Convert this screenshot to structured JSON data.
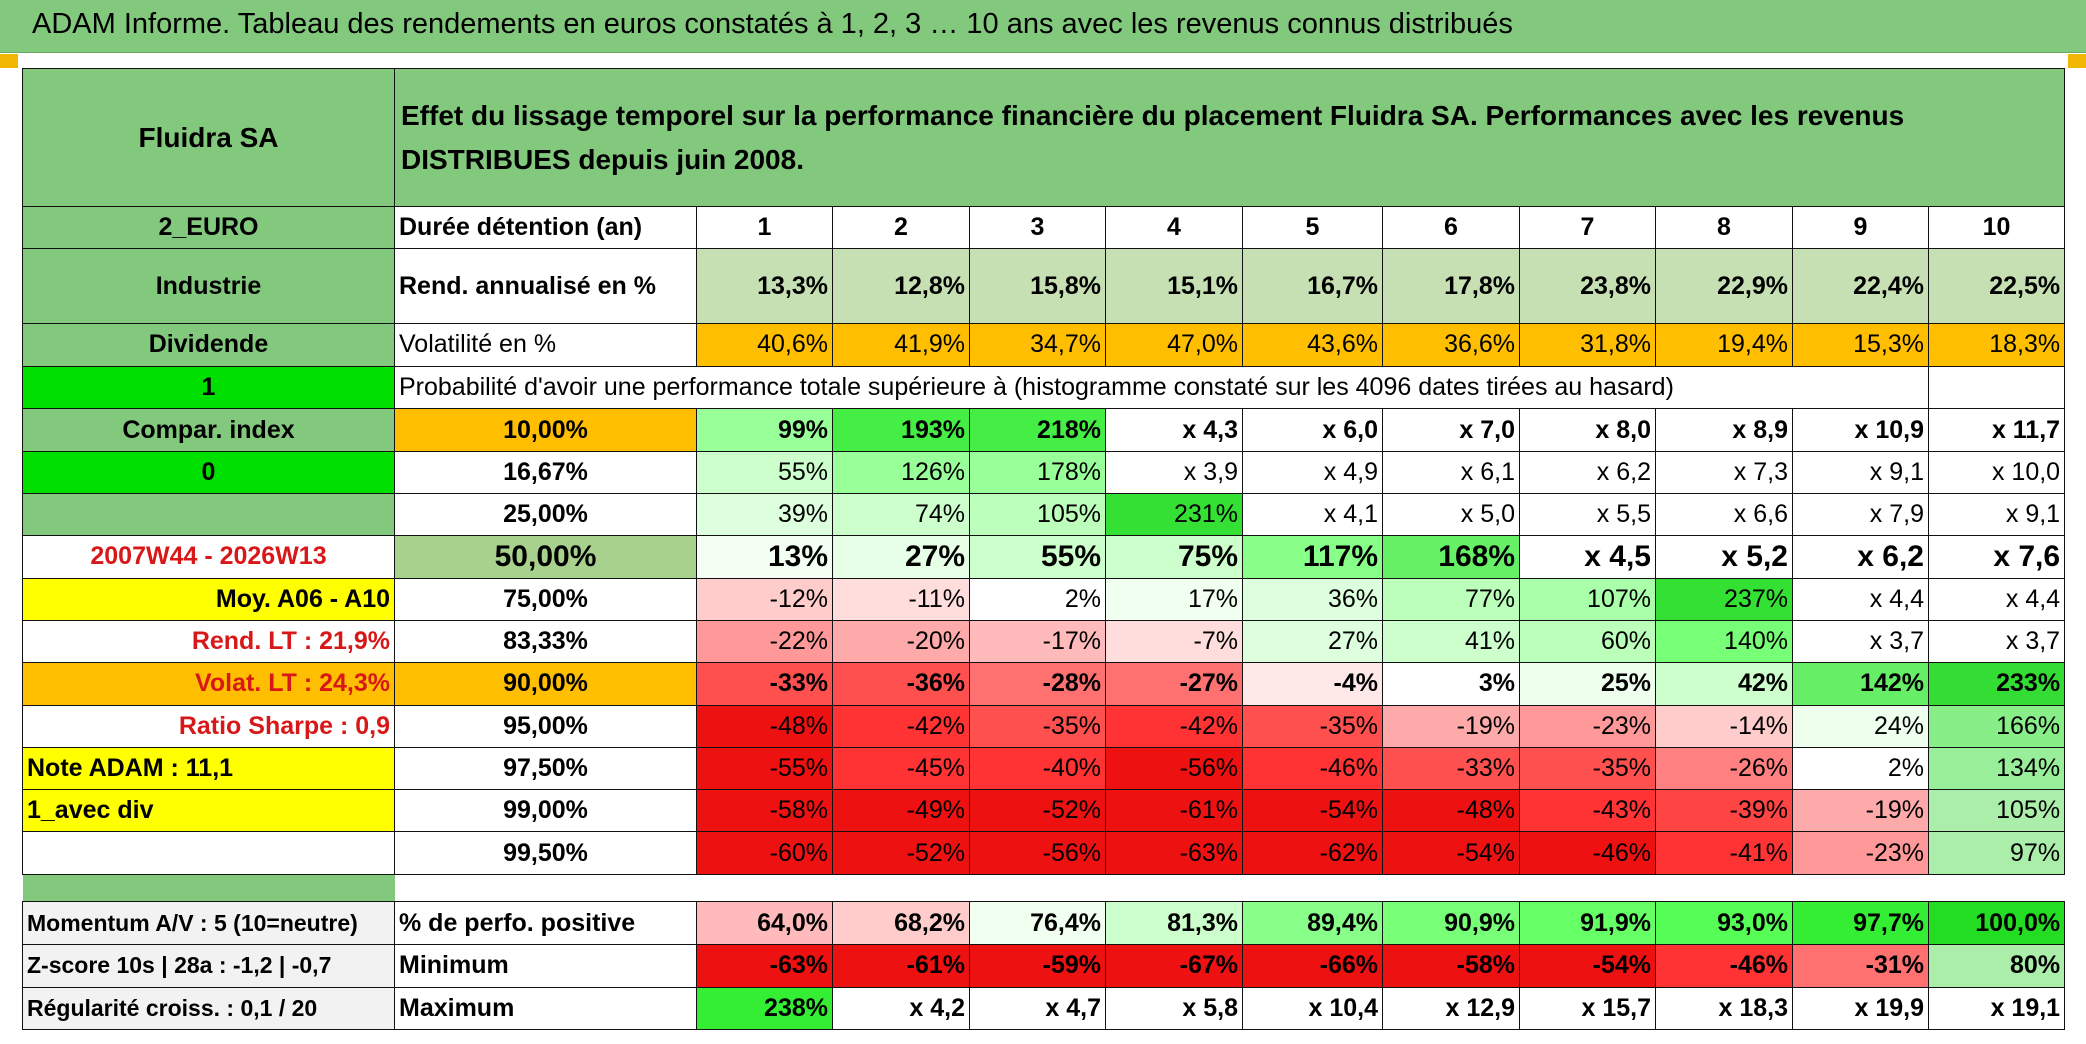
{
  "banner_title": "ADAM Informe. Tableau des rendements en euros constatés à 1, 2, 3 … 10 ans avec les revenus connus distribués",
  "colors": {
    "header_green": "#82c97e",
    "orange": "#ffbf00",
    "yellow": "#ffff00",
    "bright_green": "#00e000",
    "red_text": "#d81818",
    "side_grey": "#f2f2f2"
  },
  "rows": [
    {
      "h": 137,
      "cells": [
        {
          "t": "Fluidra SA",
          "bg": "#82c97e",
          "a": "c",
          "fs": 28
        },
        {
          "t": "Effet du lissage temporel sur la performance financière du placement Fluidra SA. Performances avec les revenus DISTRIBUES depuis juin 2008.",
          "bg": "#82c97e",
          "a": "l",
          "span": 11,
          "wrap": true
        }
      ]
    },
    {
      "h": 42,
      "cells": [
        {
          "t": "2_EURO",
          "bg": "#82c97e",
          "a": "c"
        },
        {
          "t": "Durée détention (an)",
          "a": "l"
        },
        {
          "t": "1",
          "a": "c"
        },
        {
          "t": "2",
          "a": "c"
        },
        {
          "t": "3",
          "a": "c"
        },
        {
          "t": "4",
          "a": "c"
        },
        {
          "t": "5",
          "a": "c"
        },
        {
          "t": "6",
          "a": "c"
        },
        {
          "t": "7",
          "a": "c"
        },
        {
          "t": "8",
          "a": "c"
        },
        {
          "t": "9",
          "a": "c"
        },
        {
          "t": "10",
          "a": "c"
        }
      ]
    },
    {
      "h": 74,
      "cells": [
        {
          "t": "Industrie",
          "bg": "#82c97e",
          "a": "c"
        },
        {
          "t": "Rend. annualisé en %",
          "a": "l"
        },
        {
          "t": "13,3%",
          "bg": "#c6e0b4"
        },
        {
          "t": "12,8%",
          "bg": "#c6e0b4"
        },
        {
          "t": "15,8%",
          "bg": "#c6e0b4"
        },
        {
          "t": "15,1%",
          "bg": "#c6e0b4"
        },
        {
          "t": "16,7%",
          "bg": "#c6e0b4"
        },
        {
          "t": "17,8%",
          "bg": "#c6e0b4"
        },
        {
          "t": "23,8%",
          "bg": "#c6e0b4"
        },
        {
          "t": "22,9%",
          "bg": "#c6e0b4"
        },
        {
          "t": "22,4%",
          "bg": "#c6e0b4"
        },
        {
          "t": "22,5%",
          "bg": "#c6e0b4"
        }
      ]
    },
    {
      "h": 43,
      "cells": [
        {
          "t": "Dividende",
          "bg": "#82c97e",
          "a": "c"
        },
        {
          "t": "Volatilité en %",
          "a": "l",
          "b": false
        },
        {
          "t": "40,6%",
          "bg": "#ffbf00",
          "b": false
        },
        {
          "t": "41,9%",
          "bg": "#ffbf00",
          "b": false
        },
        {
          "t": "34,7%",
          "bg": "#ffbf00",
          "b": false
        },
        {
          "t": "47,0%",
          "bg": "#ffbf00",
          "b": false
        },
        {
          "t": "43,6%",
          "bg": "#ffbf00",
          "b": false
        },
        {
          "t": "36,6%",
          "bg": "#ffbf00",
          "b": false
        },
        {
          "t": "31,8%",
          "bg": "#ffbf00",
          "b": false
        },
        {
          "t": "19,4%",
          "bg": "#ffbf00",
          "b": false
        },
        {
          "t": "15,3%",
          "bg": "#ffbf00",
          "b": false
        },
        {
          "t": "18,3%",
          "bg": "#ffbf00",
          "b": false
        }
      ]
    },
    {
      "h": 42,
      "cells": [
        {
          "t": "1",
          "bg": "#00e000",
          "a": "c"
        },
        {
          "t": "Probabilité d'avoir une performance totale supérieure à (histogramme constaté sur les 4096 dates tirées au hasard)",
          "a": "l",
          "span": 10,
          "b": false
        },
        {
          "t": ""
        }
      ]
    },
    {
      "h": 42,
      "cells": [
        {
          "t": "Compar. index",
          "bg": "#82c97e",
          "a": "c"
        },
        {
          "t": "10,00%",
          "bg": "#ffbf00",
          "a": "c"
        },
        {
          "t": "99%",
          "bg": "#99ff99"
        },
        {
          "t": "193%",
          "bg": "#44ee44"
        },
        {
          "t": "218%",
          "bg": "#44ee44"
        },
        {
          "t": "x 4,3"
        },
        {
          "t": "x 6,0"
        },
        {
          "t": "x 7,0"
        },
        {
          "t": "x 8,0"
        },
        {
          "t": "x 8,9"
        },
        {
          "t": "x 10,9"
        },
        {
          "t": "x 11,7"
        }
      ]
    },
    {
      "h": 42,
      "cells": [
        {
          "t": "0",
          "bg": "#00e000",
          "a": "c"
        },
        {
          "t": "16,67%",
          "a": "c"
        },
        {
          "t": "55%",
          "bg": "#ccffcc",
          "b": false
        },
        {
          "t": "126%",
          "bg": "#99ff99",
          "b": false
        },
        {
          "t": "178%",
          "bg": "#99ff99",
          "b": false
        },
        {
          "t": "x 3,9",
          "b": false
        },
        {
          "t": "x 4,9",
          "b": false
        },
        {
          "t": "x 6,1",
          "b": false
        },
        {
          "t": "x 6,2",
          "b": false
        },
        {
          "t": "x 7,3",
          "b": false
        },
        {
          "t": "x 9,1",
          "b": false
        },
        {
          "t": "x 10,0",
          "b": false
        }
      ]
    },
    {
      "h": 42,
      "cells": [
        {
          "t": "",
          "bg": "#82c97e"
        },
        {
          "t": "25,00%",
          "a": "c"
        },
        {
          "t": "39%",
          "bg": "#ddffdd",
          "b": false
        },
        {
          "t": "74%",
          "bg": "#ccffcc",
          "b": false
        },
        {
          "t": "105%",
          "bg": "#bbffbb",
          "b": false
        },
        {
          "t": "231%",
          "bg": "#33e033",
          "b": false
        },
        {
          "t": "x 4,1",
          "b": false
        },
        {
          "t": "x 5,0",
          "b": false
        },
        {
          "t": "x 5,5",
          "b": false
        },
        {
          "t": "x 6,6",
          "b": false
        },
        {
          "t": "x 7,9",
          "b": false
        },
        {
          "t": "x 9,1",
          "b": false
        }
      ]
    },
    {
      "h": 42,
      "cells": [
        {
          "t": "2007W44 - 2026W13",
          "a": "c",
          "red": true
        },
        {
          "t": "50,00%",
          "bg": "#a9d18e",
          "a": "c",
          "fs": 30
        },
        {
          "t": "13%",
          "bg": "#f2fff2",
          "fs": 30
        },
        {
          "t": "27%",
          "bg": "#e6ffe6",
          "fs": 30
        },
        {
          "t": "55%",
          "bg": "#ccffcc",
          "fs": 30
        },
        {
          "t": "75%",
          "bg": "#ccffcc",
          "fs": 30
        },
        {
          "t": "117%",
          "bg": "#88ff88",
          "fs": 30
        },
        {
          "t": "168%",
          "bg": "#66f066",
          "fs": 30
        },
        {
          "t": "x 4,5",
          "fs": 30
        },
        {
          "t": "x 5,2",
          "fs": 30
        },
        {
          "t": "x 6,2",
          "fs": 30
        },
        {
          "t": "x 7,6",
          "fs": 30
        }
      ]
    },
    {
      "h": 42,
      "cells": [
        {
          "t": "Moy. A06 - A10",
          "bg": "#ffff00",
          "a": "r"
        },
        {
          "t": "75,00%",
          "a": "c"
        },
        {
          "t": "-12%",
          "bg": "#ffcccc",
          "b": false
        },
        {
          "t": "-11%",
          "bg": "#ffdddd",
          "b": false
        },
        {
          "t": "2%",
          "b": false
        },
        {
          "t": "17%",
          "bg": "#f0fff0",
          "b": false
        },
        {
          "t": "36%",
          "bg": "#ddffdd",
          "b": false
        },
        {
          "t": "77%",
          "bg": "#bbffbb",
          "b": false
        },
        {
          "t": "107%",
          "bg": "#aaffaa",
          "b": false
        },
        {
          "t": "237%",
          "bg": "#33e033",
          "b": false
        },
        {
          "t": "x 4,4",
          "b": false
        },
        {
          "t": "x 4,4",
          "b": false
        }
      ]
    },
    {
      "h": 42,
      "cells": [
        {
          "t": "Rend. LT :    21,9%",
          "a": "r",
          "red": true
        },
        {
          "t": "83,33%",
          "a": "c"
        },
        {
          "t": "-22%",
          "bg": "#ff9999",
          "b": false
        },
        {
          "t": "-20%",
          "bg": "#ffaaaa",
          "b": false
        },
        {
          "t": "-17%",
          "bg": "#ffbbbb",
          "b": false
        },
        {
          "t": "-7%",
          "bg": "#ffdddd",
          "b": false
        },
        {
          "t": "27%",
          "bg": "#ddffdd",
          "b": false
        },
        {
          "t": "41%",
          "bg": "#ccffcc",
          "b": false
        },
        {
          "t": "60%",
          "bg": "#bbffbb",
          "b": false
        },
        {
          "t": "140%",
          "bg": "#77ff77",
          "b": false
        },
        {
          "t": "x 3,7",
          "b": false
        },
        {
          "t": "x 3,7",
          "b": false
        }
      ]
    },
    {
      "h": 42,
      "cells": [
        {
          "t": "Volat. LT :    24,3%",
          "bg": "#ffbf00",
          "a": "r",
          "red": true
        },
        {
          "t": "90,00%",
          "bg": "#ffbf00",
          "a": "c"
        },
        {
          "t": "-33%",
          "bg": "#ff5050"
        },
        {
          "t": "-36%",
          "bg": "#ff5050"
        },
        {
          "t": "-28%",
          "bg": "#ff7070"
        },
        {
          "t": "-27%",
          "bg": "#ff7070"
        },
        {
          "t": "-4%",
          "bg": "#ffe8e8"
        },
        {
          "t": "3%"
        },
        {
          "t": "25%",
          "bg": "#eeffee"
        },
        {
          "t": "42%",
          "bg": "#ccffcc"
        },
        {
          "t": "142%",
          "bg": "#66ee66"
        },
        {
          "t": "233%",
          "bg": "#33dd33"
        }
      ]
    },
    {
      "h": 42,
      "cells": [
        {
          "t": "Ratio Sharpe :    0,9",
          "a": "r",
          "red": true
        },
        {
          "t": "95,00%",
          "a": "c"
        },
        {
          "t": "-48%",
          "bg": "#ee1111",
          "b": false
        },
        {
          "t": "-42%",
          "bg": "#ff3333",
          "b": false
        },
        {
          "t": "-35%",
          "bg": "#ff5050",
          "b": false
        },
        {
          "t": "-42%",
          "bg": "#ff3333",
          "b": false
        },
        {
          "t": "-35%",
          "bg": "#ff5050",
          "b": false
        },
        {
          "t": "-19%",
          "bg": "#ffaaaa",
          "b": false
        },
        {
          "t": "-23%",
          "bg": "#ff9999",
          "b": false
        },
        {
          "t": "-14%",
          "bg": "#ffcccc",
          "b": false
        },
        {
          "t": "24%",
          "bg": "#eeffee",
          "b": false
        },
        {
          "t": "166%",
          "bg": "#88ee88",
          "b": false
        }
      ]
    },
    {
      "h": 42,
      "cells": [
        {
          "t": "Note ADAM : 11,1",
          "bg": "#ffff00",
          "a": "l"
        },
        {
          "t": "97,50%",
          "a": "c"
        },
        {
          "t": "-55%",
          "bg": "#ee1111",
          "b": false
        },
        {
          "t": "-45%",
          "bg": "#ff3333",
          "b": false
        },
        {
          "t": "-40%",
          "bg": "#ff3333",
          "b": false
        },
        {
          "t": "-56%",
          "bg": "#ee1111",
          "b": false
        },
        {
          "t": "-46%",
          "bg": "#ff3333",
          "b": false
        },
        {
          "t": "-33%",
          "bg": "#ff5050",
          "b": false
        },
        {
          "t": "-35%",
          "bg": "#ff5050",
          "b": false
        },
        {
          "t": "-26%",
          "bg": "#ff8080",
          "b": false
        },
        {
          "t": "2%",
          "b": false
        },
        {
          "t": "134%",
          "bg": "#99ee99",
          "b": false
        }
      ]
    },
    {
      "h": 42,
      "cells": [
        {
          "t": "1_avec div",
          "bg": "#ffff00",
          "a": "l"
        },
        {
          "t": "99,00%",
          "a": "c"
        },
        {
          "t": "-58%",
          "bg": "#ee1111",
          "b": false
        },
        {
          "t": "-49%",
          "bg": "#ee1111",
          "b": false
        },
        {
          "t": "-52%",
          "bg": "#ee1111",
          "b": false
        },
        {
          "t": "-61%",
          "bg": "#ee1111",
          "b": false
        },
        {
          "t": "-54%",
          "bg": "#ee1111",
          "b": false
        },
        {
          "t": "-48%",
          "bg": "#ee1111",
          "b": false
        },
        {
          "t": "-43%",
          "bg": "#ff3333",
          "b": false
        },
        {
          "t": "-39%",
          "bg": "#ff4444",
          "b": false
        },
        {
          "t": "-19%",
          "bg": "#ffaaaa",
          "b": false
        },
        {
          "t": "105%",
          "bg": "#aaeeaa",
          "b": false
        }
      ]
    },
    {
      "h": 42,
      "cells": [
        {
          "t": ""
        },
        {
          "t": "99,50%",
          "a": "c"
        },
        {
          "t": "-60%",
          "bg": "#ee1111",
          "b": false
        },
        {
          "t": "-52%",
          "bg": "#ee1111",
          "b": false
        },
        {
          "t": "-56%",
          "bg": "#ee1111",
          "b": false
        },
        {
          "t": "-63%",
          "bg": "#ee1111",
          "b": false
        },
        {
          "t": "-62%",
          "bg": "#ee1111",
          "b": false
        },
        {
          "t": "-54%",
          "bg": "#ee1111",
          "b": false
        },
        {
          "t": "-46%",
          "bg": "#ee1111",
          "b": false
        },
        {
          "t": "-41%",
          "bg": "#ff3333",
          "b": false
        },
        {
          "t": "-23%",
          "bg": "#ff9999",
          "b": false
        },
        {
          "t": "97%",
          "bg": "#aaeeaa",
          "b": false
        }
      ]
    },
    {
      "h": 27,
      "spacer": true,
      "cells": [
        {
          "t": "",
          "bg": "#82c97e",
          "nb": true
        },
        {
          "t": "",
          "span": 11,
          "nb": true
        }
      ]
    },
    {
      "h": 43,
      "cells": [
        {
          "t": "Momentum A/V : 5 (10=neutre)",
          "bg": "#f2f2f2",
          "a": "l",
          "fs": 23
        },
        {
          "t": "% de perfo. positive",
          "a": "l"
        },
        {
          "t": "64,0%",
          "bg": "#ffbbbb"
        },
        {
          "t": "68,2%",
          "bg": "#ffcccc"
        },
        {
          "t": "76,4%",
          "bg": "#f0fff0"
        },
        {
          "t": "81,3%",
          "bg": "#ccffcc"
        },
        {
          "t": "89,4%",
          "bg": "#88ff88"
        },
        {
          "t": "90,9%",
          "bg": "#77ff77"
        },
        {
          "t": "91,9%",
          "bg": "#66ff66"
        },
        {
          "t": "93,0%",
          "bg": "#55ff55"
        },
        {
          "t": "97,7%",
          "bg": "#33ee33"
        },
        {
          "t": "100,0%",
          "bg": "#22dd22"
        }
      ]
    },
    {
      "h": 42,
      "cells": [
        {
          "t": "Z-score 10s | 28a : -1,2 | -0,7",
          "bg": "#f2f2f2",
          "a": "l",
          "fs": 23
        },
        {
          "t": "Minimum",
          "a": "l"
        },
        {
          "t": "-63%",
          "bg": "#ee1111"
        },
        {
          "t": "-61%",
          "bg": "#ee1111"
        },
        {
          "t": "-59%",
          "bg": "#ee1111"
        },
        {
          "t": "-67%",
          "bg": "#ee1111"
        },
        {
          "t": "-66%",
          "bg": "#ee1111"
        },
        {
          "t": "-58%",
          "bg": "#ee1111"
        },
        {
          "t": "-54%",
          "bg": "#ee1111"
        },
        {
          "t": "-46%",
          "bg": "#ff3333"
        },
        {
          "t": "-31%",
          "bg": "#ff7070"
        },
        {
          "t": "80%",
          "bg": "#aaeeaa"
        }
      ]
    },
    {
      "h": 42,
      "cells": [
        {
          "t": "Régularité croiss. : 0,1 / 20",
          "bg": "#f2f2f2",
          "a": "l",
          "fs": 23
        },
        {
          "t": "Maximum",
          "a": "l"
        },
        {
          "t": "238%",
          "bg": "#33ee33"
        },
        {
          "t": "x 4,2"
        },
        {
          "t": "x 4,7"
        },
        {
          "t": "x 5,8"
        },
        {
          "t": "x 10,4"
        },
        {
          "t": "x 12,9"
        },
        {
          "t": "x 15,7"
        },
        {
          "t": "x 18,3"
        },
        {
          "t": "x 19,9"
        },
        {
          "t": "x 19,1"
        }
      ]
    }
  ]
}
